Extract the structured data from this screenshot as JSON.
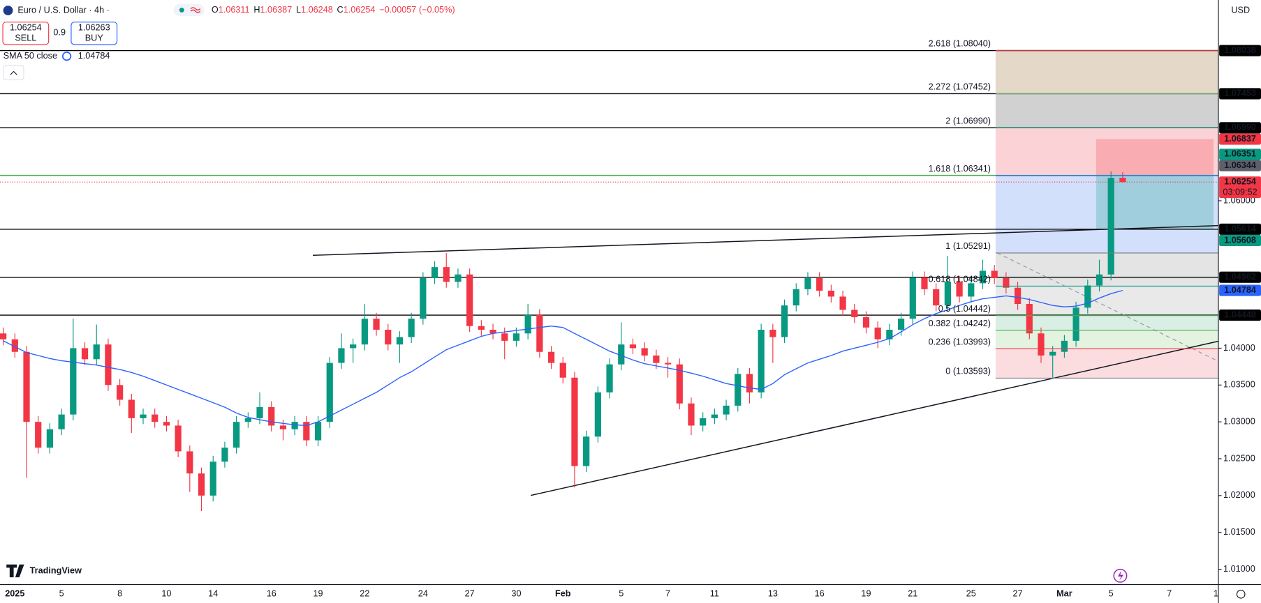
{
  "chart_data": {
    "type": "candlestick",
    "title": "Euro / U.S. Dollar · 4h ·",
    "header_labels": [
      "O",
      "H",
      "L",
      "C"
    ],
    "change": "−0.00057 (−0.05%)",
    "sell": {
      "label": "SELL"
    },
    "buy": {
      "price": "1.06263",
      "label": "BUY"
    },
    "spread": "0.9",
    "currency": "USD",
    "timer": "03:09:52",
    "logo": "TradingView",
    "up_color": "#089981",
    "down_color": "#f23645",
    "ylim": [
      1.00793,
      1.08724
    ],
    "yticks": [
      {
        "value": 1.06,
        "label": "1.06000"
      },
      {
        "value": 1.04,
        "label": "1.04000"
      },
      {
        "value": 1.035,
        "label": "1.03500"
      },
      {
        "value": 1.03,
        "label": "1.03000"
      },
      {
        "value": 1.025,
        "label": "1.02500"
      },
      {
        "value": 1.02,
        "label": "1.02000"
      },
      {
        "value": 1.015,
        "label": "1.01500"
      },
      {
        "value": 1.01,
        "label": "1.01000"
      }
    ],
    "grid": false,
    "categories": [
      null,
      "2025",
      null,
      null,
      null,
      "5",
      null,
      null,
      null,
      null,
      "8",
      null,
      null,
      null,
      "10",
      null,
      null,
      null,
      "14",
      null,
      null,
      null,
      null,
      "16",
      null,
      null,
      null,
      "19",
      null,
      null,
      null,
      "22",
      null,
      null,
      null,
      null,
      "24",
      null,
      null,
      null,
      "27",
      null,
      null,
      null,
      "30",
      null,
      null,
      null,
      "Feb",
      null,
      null,
      null,
      null,
      "5",
      null,
      null,
      null,
      "7",
      null,
      null,
      null,
      "11",
      null,
      null,
      null,
      null,
      "13",
      null,
      null,
      null,
      "16",
      null,
      null,
      null,
      "19",
      null,
      null,
      null,
      "21",
      null,
      null,
      null,
      null,
      "25",
      null,
      null,
      null,
      "27",
      null,
      null,
      null,
      "Mar",
      null,
      null,
      null,
      "5",
      null,
      null,
      null,
      null,
      "7",
      null,
      null,
      null,
      "1"
    ],
    "open": [
      1.042,
      1.0412,
      1.0395,
      1.03,
      1.0265,
      1.029,
      1.031,
      1.04,
      1.0385,
      1.0405,
      1.035,
      1.033,
      1.0305,
      1.031,
      1.03,
      1.0295,
      1.026,
      1.023,
      1.02,
      1.0246,
      1.0265,
      1.03,
      1.0305,
      1.032,
      1.0295,
      1.029,
      1.03,
      1.0275,
      1.03,
      1.038,
      1.04,
      1.0405,
      1.044,
      1.0425,
      1.0405,
      1.0415,
      1.044,
      1.0495,
      1.051,
      1.049,
      1.05,
      1.043,
      1.0425,
      1.042,
      1.041,
      1.042,
      1.0445,
      1.0395,
      1.038,
      1.036,
      1.024,
      1.028,
      1.034,
      1.0378,
      1.0405,
      1.04,
      1.039,
      1.038,
      1.0378,
      1.0325,
      1.0295,
      1.0305,
      1.031,
      1.0322,
      1.0365,
      1.034,
      1.0425,
      1.0415,
      1.0458,
      1.048,
      1.0495,
      1.0478,
      1.047,
      1.0452,
      1.0442,
      1.0428,
      1.0412,
      1.0425,
      1.044,
      1.0496,
      1.048,
      1.0458,
      1.049,
      1.047,
      1.0488,
      1.0505,
      1.0495,
      1.0482,
      1.046,
      1.042,
      1.039,
      1.0395,
      1.041,
      1.0455,
      1.0485,
      1.05,
      1.06311,
      null,
      null,
      null,
      null,
      null,
      null,
      null,
      null
    ],
    "high": [
      1.0428,
      1.042,
      1.0403,
      1.0308,
      1.0298,
      1.0318,
      1.044,
      1.0408,
      1.0432,
      1.0413,
      1.0358,
      1.0338,
      1.0318,
      1.0318,
      1.0308,
      1.0303,
      1.0268,
      1.0238,
      1.0254,
      1.0273,
      1.0308,
      1.0313,
      1.034,
      1.0328,
      1.0303,
      1.0308,
      1.0308,
      1.0308,
      1.0388,
      1.042,
      1.0413,
      1.046,
      1.0448,
      1.0433,
      1.0423,
      1.0448,
      1.0503,
      1.0518,
      1.0529,
      1.0508,
      1.0508,
      1.0438,
      1.0433,
      1.0428,
      1.0428,
      1.046,
      1.0453,
      1.0403,
      1.0388,
      1.0368,
      1.0288,
      1.0348,
      1.0386,
      1.0435,
      1.0413,
      1.0408,
      1.0398,
      1.0388,
      1.0386,
      1.0333,
      1.0313,
      1.0318,
      1.033,
      1.0373,
      1.0373,
      1.0433,
      1.0433,
      1.0466,
      1.0488,
      1.0503,
      1.0503,
      1.0486,
      1.0478,
      1.046,
      1.045,
      1.0436,
      1.0433,
      1.0448,
      1.0504,
      1.0504,
      1.0488,
      1.0525,
      1.0498,
      1.0496,
      1.052,
      1.0513,
      1.0503,
      1.049,
      1.0468,
      1.0428,
      1.0403,
      1.0418,
      1.0463,
      1.0493,
      1.052,
      1.064,
      1.06387,
      null,
      null,
      null,
      null,
      null,
      null,
      null,
      null
    ],
    "low": [
      1.0404,
      1.0387,
      1.0224,
      1.0257,
      1.0257,
      1.0282,
      1.0302,
      1.0377,
      1.0377,
      1.0342,
      1.0322,
      1.0285,
      1.0297,
      1.0292,
      1.0287,
      1.0252,
      1.0205,
      1.0179,
      1.0192,
      1.0238,
      1.0257,
      1.0292,
      1.0297,
      1.0287,
      1.0275,
      1.0282,
      1.0267,
      1.0267,
      1.0292,
      1.0372,
      1.038,
      1.0397,
      1.0417,
      1.0397,
      1.038,
      1.0407,
      1.0432,
      1.0487,
      1.0482,
      1.0482,
      1.0422,
      1.0417,
      1.0412,
      1.0385,
      1.0402,
      1.0412,
      1.0387,
      1.0372,
      1.0352,
      1.0211,
      1.0232,
      1.0272,
      1.0332,
      1.037,
      1.0392,
      1.0382,
      1.0372,
      1.036,
      1.0317,
      1.0282,
      1.0287,
      1.0297,
      1.0302,
      1.0314,
      1.0325,
      1.0332,
      1.038,
      1.0407,
      1.045,
      1.0472,
      1.047,
      1.0462,
      1.0444,
      1.0434,
      1.042,
      1.04,
      1.0404,
      1.0417,
      1.0432,
      1.0472,
      1.045,
      1.045,
      1.0462,
      1.0462,
      1.048,
      1.0487,
      1.0474,
      1.0452,
      1.0412,
      1.038,
      1.036,
      1.0387,
      1.0402,
      1.0447,
      1.0477,
      1.0492,
      1.06248,
      null,
      null,
      null,
      null,
      null,
      null,
      null,
      null
    ],
    "close": [
      1.0412,
      1.0395,
      1.03,
      1.0265,
      1.029,
      1.031,
      1.04,
      1.0385,
      1.0405,
      1.035,
      1.033,
      1.0305,
      1.031,
      1.03,
      1.0295,
      1.026,
      1.023,
      1.02,
      1.0246,
      1.0265,
      1.03,
      1.0305,
      1.032,
      1.0295,
      1.029,
      1.03,
      1.0275,
      1.03,
      1.038,
      1.04,
      1.0405,
      1.044,
      1.0425,
      1.0405,
      1.0415,
      1.044,
      1.0495,
      1.051,
      1.049,
      1.05,
      1.043,
      1.0425,
      1.042,
      1.041,
      1.042,
      1.0445,
      1.0395,
      1.038,
      1.036,
      1.024,
      1.028,
      1.034,
      1.0378,
      1.0405,
      1.04,
      1.039,
      1.038,
      1.0378,
      1.0325,
      1.0295,
      1.0305,
      1.031,
      1.0322,
      1.0365,
      1.034,
      1.0425,
      1.0415,
      1.0458,
      1.048,
      1.0495,
      1.0478,
      1.047,
      1.0452,
      1.0442,
      1.0428,
      1.0412,
      1.0425,
      1.044,
      1.0496,
      1.048,
      1.0458,
      1.049,
      1.047,
      1.0488,
      1.0505,
      1.0495,
      1.0482,
      1.046,
      1.042,
      1.039,
      1.0395,
      1.041,
      1.0455,
      1.0485,
      1.05,
      1.06311,
      1.06254,
      null,
      null,
      null,
      null,
      null,
      null,
      null,
      null
    ],
    "indicator": {
      "name": "SMA 50 close",
      "color": "#2962ff",
      "values": [
        1.041,
        1.0402,
        1.0394,
        1.039,
        1.0386,
        1.0383,
        1.0381,
        1.0379,
        1.0377,
        1.0374,
        1.0371,
        1.0367,
        1.0362,
        1.0356,
        1.035,
        1.0344,
        1.0338,
        1.0332,
        1.0326,
        1.032,
        1.0312,
        1.0306,
        1.0303,
        1.03,
        1.0298,
        1.0296,
        1.0295,
        1.03,
        1.0308,
        1.0316,
        1.0324,
        1.0332,
        1.034,
        1.035,
        1.036,
        1.0368,
        1.0378,
        1.0388,
        1.0398,
        1.0404,
        1.041,
        1.0416,
        1.042,
        1.0422,
        1.0424,
        1.0426,
        1.0428,
        1.043,
        1.0428,
        1.042,
        1.0412,
        1.0404,
        1.0396,
        1.039,
        1.0384,
        1.0379,
        1.0376,
        1.0373,
        1.037,
        1.0366,
        1.0362,
        1.0357,
        1.0352,
        1.0349,
        1.0346,
        1.0344,
        1.0352,
        1.0364,
        1.0372,
        1.038,
        1.0385,
        1.039,
        1.0396,
        1.04,
        1.0404,
        1.0408,
        1.0413,
        1.0422,
        1.0432,
        1.044,
        1.0447,
        1.0452,
        1.0458,
        1.0463,
        1.0467,
        1.0469,
        1.0471,
        1.0469,
        1.0466,
        1.0462,
        1.0458,
        1.0456,
        1.0457,
        1.0461,
        1.0468,
        1.0474,
        1.04784,
        null,
        null,
        null,
        null,
        null,
        null,
        null,
        null
      ]
    },
    "levels": [
      {
        "price": 1.08038,
        "color": "#000000"
      },
      {
        "price": 1.07453,
        "color": "#000000"
      },
      {
        "price": 1.0699,
        "label": "1.06990",
        "color": "#000000"
      },
      {
        "price": 1.05614,
        "color": "#000000"
      },
      {
        "price": 1.04962,
        "color": "#000000"
      },
      {
        "price": 1.04448,
        "color": "#000000"
      },
      {
        "price": 1.06344,
        "color": "#5d606b",
        "line": "#4caf50"
      }
    ],
    "position": {
      "stop": 1.06837,
      "entry": 1.06351,
      "target": 1.05608,
      "stop_color": "#f23645",
      "target_color": "#089981"
    },
    "fib": [
      {
        "price": 1.0804,
        "label": "2.618 (1.08040)",
        "color": "#f23645",
        "fill": "#e4d8c9"
      },
      {
        "price": 1.07452,
        "label": "2.272 (1.07452)",
        "color": "#66bb6a",
        "fill": "#d1d1d1"
      },
      {
        "price": 1.0699,
        "label": "2 (1.06990)",
        "color": "#089981",
        "fill": "#fbd3d7"
      },
      {
        "price": 1.06341,
        "label": "1.618 (1.06341)",
        "color": "#2962ff",
        "fill": "#d3e0fb"
      },
      {
        "price": 1.05291,
        "label": "1 (1.05291)",
        "color": "#787b86",
        "fill": "#e4e4e4"
      },
      {
        "price": 1.04842,
        "label": "0.618 (1.04842)",
        "color": "#089981",
        "fill": "#e9e9e9"
      },
      {
        "price": 1.04442,
        "label": "0.5 (1.04442)",
        "color": "#4caf50",
        "fill": "#d9eee4"
      },
      {
        "price": 1.04242,
        "label": "0.382 (1.04242)",
        "color": "#4caf50",
        "fill": "#e4f2e0"
      },
      {
        "price": 1.03993,
        "label": "0.236 (1.03993)",
        "color": "#f23645",
        "fill": "#fbdde0"
      },
      {
        "price": 1.03593,
        "label": "0 (1.03593)",
        "color": "#787b86",
        "fill": "#ffffff"
      }
    ]
  }
}
